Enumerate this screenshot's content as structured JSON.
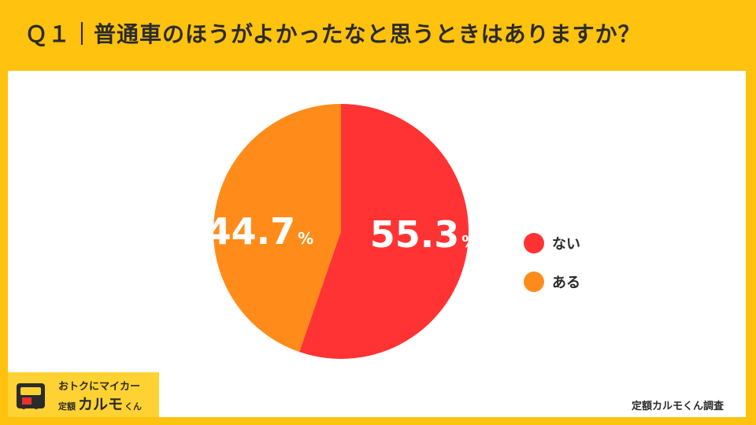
{
  "title": "Ｑ１｜普通車のほうがよかったなと思うときはありますか？",
  "chart_data": {
    "type": "pie",
    "categories": [
      "ない",
      "ある"
    ],
    "values": [
      55.3,
      44.7
    ],
    "colors": [
      "#FF3333",
      "#FF8C1A"
    ],
    "unit": "%",
    "legend_position": "right"
  },
  "legend": [
    {
      "label": "ない",
      "color": "#FF3333"
    },
    {
      "label": "ある",
      "color": "#FF8C1A"
    }
  ],
  "logo": {
    "tagline": "おトクにマイカー",
    "prefix": "定額",
    "brand": "カルモ",
    "suffix": "くん"
  },
  "source": "定額カルモくん調査"
}
